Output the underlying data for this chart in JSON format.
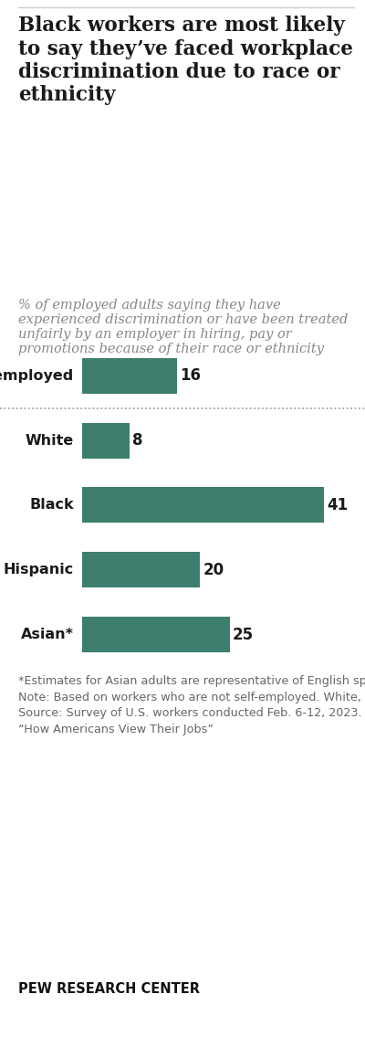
{
  "title": "Black workers are most likely to say they’ve faced workplace discrimination due to race or ethnicity",
  "subtitle": "% of employed adults saying they have experienced discrimination or have been treated unfairly by an employer in hiring, pay or promotions because of their race or ethnicity",
  "categories": [
    "All employed",
    "White",
    "Black",
    "Hispanic",
    "Asian*"
  ],
  "values": [
    16,
    8,
    41,
    20,
    25
  ],
  "bar_color": "#3d7f6e",
  "label_color": "#1a1a1a",
  "value_color": "#1a1a1a",
  "subtitle_color": "#888888",
  "note_color": "#666666",
  "title_color": "#1a1a1a",
  "background_color": "#ffffff",
  "footnote_text": "*Estimates for Asian adults are representative of English speakers only.\nNote: Based on workers who are not self-employed. White, Black and Asian adults include those who report being only one race and are not Hispanic. Hispanics are of any race.\nSource: Survey of U.S. workers conducted Feb. 6-12, 2023.\n“How Americans View Their Jobs”",
  "source_label": "PEW RESEARCH CENTER",
  "figsize": [
    4.0,
    11.46
  ],
  "dpi": 100
}
